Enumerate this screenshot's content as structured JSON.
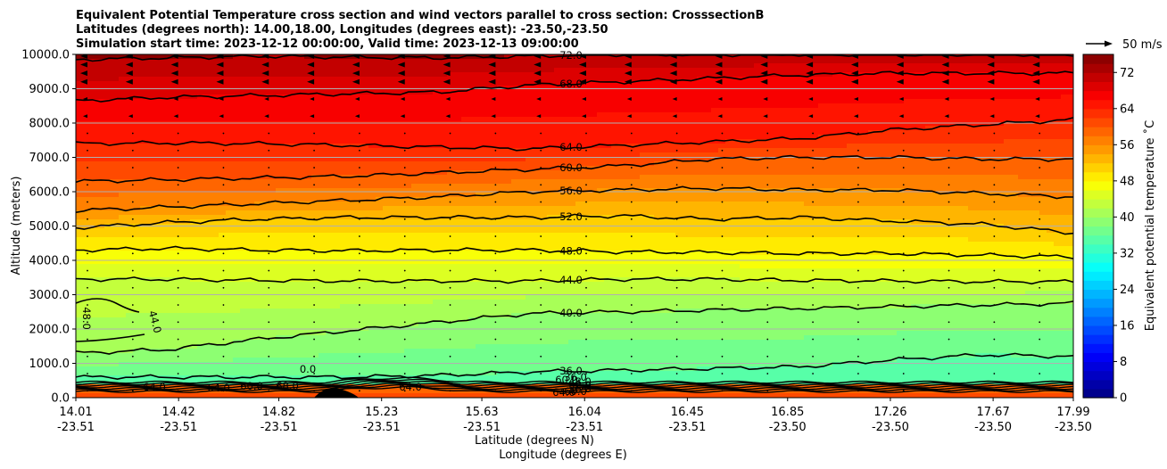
{
  "chart_data": {
    "type": "contour",
    "title_lines": [
      "Equivalent Potential Temperature cross section and wind vectors parallel to cross section: CrosssectionB",
      "Latitudes (degrees north): 14.00,18.00, Longitudes (degrees east): -23.50,-23.50",
      "Simulation start time: 2023-12-12 00:00:00, Valid time: 2023-12-13 09:00:00"
    ],
    "ylabel": "Altitude (meters)",
    "xlabel_lat": "Latitude (degrees N)",
    "xlabel_lon": "Longitude (degrees E)",
    "ylim": [
      0,
      10000
    ],
    "y_ticks": [
      "0.0",
      "1000.0",
      "2000.0",
      "3000.0",
      "4000.0",
      "5000.0",
      "6000.0",
      "7000.0",
      "8000.0",
      "9000.0",
      "10000.0"
    ],
    "x_ticks_lat": [
      "14.01",
      "14.42",
      "14.82",
      "15.23",
      "15.63",
      "16.04",
      "16.45",
      "16.85",
      "17.26",
      "17.67",
      "17.99"
    ],
    "x_ticks_lon": [
      "-23.51",
      "-23.51",
      "-23.51",
      "-23.51",
      "-23.51",
      "-23.51",
      "-23.51",
      "-23.50",
      "-23.50",
      "-23.50",
      "-23.50"
    ],
    "colorbar": {
      "label": "Equivalent potential temperature ˚C",
      "ticks": [
        "0",
        "8",
        "16",
        "24",
        "32",
        "40",
        "48",
        "56",
        "64",
        "72"
      ],
      "range": [
        0,
        76
      ]
    },
    "quiver_key": "50 m/s",
    "grid": true,
    "contour_lines": [
      {
        "value": 36,
        "label": "36.0",
        "heights": [
          600,
          600,
          600,
          600,
          650,
          750,
          800,
          850,
          900,
          1100,
          1250,
          1200
        ]
      },
      {
        "value": 40,
        "label": "40.0",
        "heights": [
          1300,
          1400,
          1700,
          1950,
          2200,
          2450,
          2500,
          2550,
          2600,
          2650,
          2700,
          2750
        ]
      },
      {
        "value": 44,
        "label": "44.0",
        "heights": [
          3450,
          3450,
          3420,
          3400,
          3400,
          3400,
          3450,
          3450,
          3420,
          3400,
          3380,
          3380
        ]
      },
      {
        "value": 48,
        "label": "48.0",
        "heights": [
          4300,
          4350,
          4300,
          4280,
          4300,
          4300,
          4250,
          4230,
          4200,
          4200,
          4150,
          4100
        ]
      },
      {
        "value": 52,
        "label": "52.0",
        "heights": [
          4950,
          5100,
          5200,
          5250,
          5250,
          5250,
          5300,
          5200,
          5250,
          5150,
          5050,
          4800
        ]
      },
      {
        "value": 56,
        "label": "56.0",
        "heights": [
          5450,
          5550,
          5650,
          5750,
          5850,
          6000,
          6050,
          6100,
          6050,
          6050,
          5950,
          5850
        ]
      },
      {
        "value": 60,
        "label": "60.0",
        "heights": [
          6300,
          6350,
          6400,
          6450,
          6550,
          6650,
          6750,
          6950,
          7000,
          7000,
          6950,
          6950
        ]
      },
      {
        "value": 64,
        "label": "64.0",
        "heights": [
          7400,
          7420,
          7400,
          7350,
          7300,
          7250,
          7350,
          7450,
          7550,
          7800,
          7950,
          8100
        ]
      },
      {
        "value": 68,
        "label": "68.0",
        "heights": [
          8650,
          8750,
          8800,
          8850,
          8900,
          9100,
          9200,
          9300,
          9400,
          9450,
          9450,
          9450
        ]
      },
      {
        "value": 72,
        "label": "72.0",
        "heights": [
          9850,
          9900,
          9950,
          9920,
          9900,
          9950,
          10000,
          10000,
          10000,
          10000,
          10000,
          10000
        ]
      }
    ],
    "surface_labels": [
      "64.0",
      "64.0",
      "60.0",
      "68.0",
      "64.0",
      "60.0",
      "36.0",
      "48.0",
      "52.0",
      "56.0",
      "60.0",
      "64.0",
      "0.0"
    ],
    "left_labels": [
      "48.0",
      "44.0"
    ]
  }
}
